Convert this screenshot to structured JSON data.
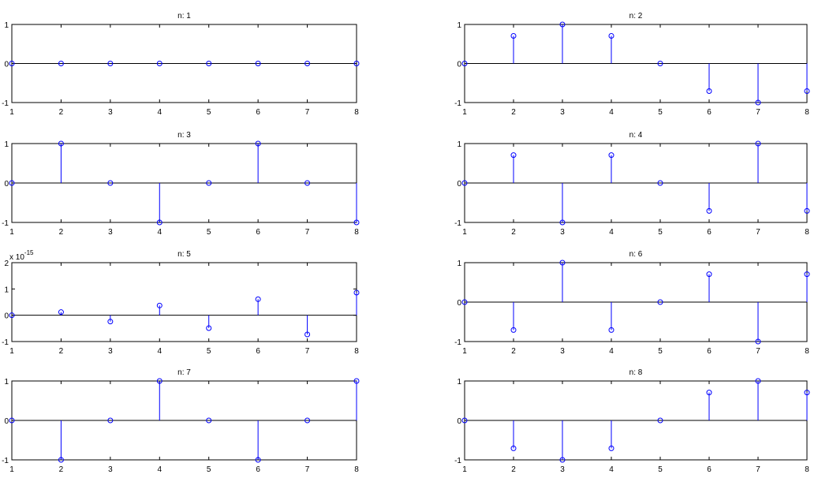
{
  "chart_data": [
    {
      "type": "stem",
      "title": "n: 1",
      "x": [
        1,
        2,
        3,
        4,
        5,
        6,
        7,
        8
      ],
      "values": [
        0,
        0,
        0,
        0,
        0,
        0,
        0,
        0
      ],
      "xlim": [
        1,
        8
      ],
      "ylim": [
        -1,
        1
      ],
      "xticks": [
        "1",
        "2",
        "3",
        "4",
        "5",
        "6",
        "7",
        "8"
      ],
      "yticks": [
        {
          "v": -1,
          "label": "-1"
        },
        {
          "v": 0,
          "label": "0"
        },
        {
          "v": 1,
          "label": "1"
        }
      ],
      "grid": false
    },
    {
      "type": "stem",
      "title": "n: 2",
      "x": [
        1,
        2,
        3,
        4,
        5,
        6,
        7,
        8
      ],
      "values": [
        0,
        0.7071,
        1,
        0.7071,
        0,
        -0.7071,
        -1,
        -0.7071
      ],
      "xlim": [
        1,
        8
      ],
      "ylim": [
        -1,
        1
      ],
      "xticks": [
        "1",
        "2",
        "3",
        "4",
        "5",
        "6",
        "7",
        "8"
      ],
      "yticks": [
        {
          "v": -1,
          "label": "-1"
        },
        {
          "v": 0,
          "label": "0"
        },
        {
          "v": 1,
          "label": "1"
        }
      ],
      "grid": false
    },
    {
      "type": "stem",
      "title": "n: 3",
      "x": [
        1,
        2,
        3,
        4,
        5,
        6,
        7,
        8
      ],
      "values": [
        0,
        1,
        0,
        -1,
        0,
        1,
        0,
        -1
      ],
      "xlim": [
        1,
        8
      ],
      "ylim": [
        -1,
        1
      ],
      "xticks": [
        "1",
        "2",
        "3",
        "4",
        "5",
        "6",
        "7",
        "8"
      ],
      "yticks": [
        {
          "v": -1,
          "label": "-1"
        },
        {
          "v": 0,
          "label": "0"
        },
        {
          "v": 1,
          "label": "1"
        }
      ],
      "grid": false
    },
    {
      "type": "stem",
      "title": "n: 4",
      "x": [
        1,
        2,
        3,
        4,
        5,
        6,
        7,
        8
      ],
      "values": [
        0,
        0.7071,
        -1,
        0.7071,
        0,
        -0.7071,
        1,
        -0.7071
      ],
      "xlim": [
        1,
        8
      ],
      "ylim": [
        -1,
        1
      ],
      "xticks": [
        "1",
        "2",
        "3",
        "4",
        "5",
        "6",
        "7",
        "8"
      ],
      "yticks": [
        {
          "v": -1,
          "label": "-1"
        },
        {
          "v": 0,
          "label": "0"
        },
        {
          "v": 1,
          "label": "1"
        }
      ],
      "grid": false
    },
    {
      "type": "stem",
      "title": "n: 5",
      "x": [
        1,
        2,
        3,
        4,
        5,
        6,
        7,
        8
      ],
      "values": [
        0,
        0.12,
        -0.24,
        0.37,
        -0.49,
        0.61,
        -0.73,
        0.86
      ],
      "xlim": [
        1,
        8
      ],
      "ylim": [
        -1,
        2
      ],
      "xticks": [
        "1",
        "2",
        "3",
        "4",
        "5",
        "6",
        "7",
        "8"
      ],
      "yticks": [
        {
          "v": -1,
          "label": "-1"
        },
        {
          "v": 0,
          "label": "0"
        },
        {
          "v": 1,
          "label": "1"
        },
        {
          "v": 2,
          "label": "2"
        }
      ],
      "multiplier_base": "x 10",
      "multiplier_exp": "-15",
      "grid": false
    },
    {
      "type": "stem",
      "title": "n: 6",
      "x": [
        1,
        2,
        3,
        4,
        5,
        6,
        7,
        8
      ],
      "values": [
        0,
        -0.7071,
        1,
        -0.7071,
        0,
        0.7071,
        -1,
        0.7071
      ],
      "xlim": [
        1,
        8
      ],
      "ylim": [
        -1,
        1
      ],
      "xticks": [
        "1",
        "2",
        "3",
        "4",
        "5",
        "6",
        "7",
        "8"
      ],
      "yticks": [
        {
          "v": -1,
          "label": "-1"
        },
        {
          "v": 0,
          "label": "0"
        },
        {
          "v": 1,
          "label": "1"
        }
      ],
      "grid": false
    },
    {
      "type": "stem",
      "title": "n: 7",
      "x": [
        1,
        2,
        3,
        4,
        5,
        6,
        7,
        8
      ],
      "values": [
        0,
        -1,
        0,
        1,
        0,
        -1,
        0,
        1
      ],
      "xlim": [
        1,
        8
      ],
      "ylim": [
        -1,
        1
      ],
      "xticks": [
        "1",
        "2",
        "3",
        "4",
        "5",
        "6",
        "7",
        "8"
      ],
      "yticks": [
        {
          "v": -1,
          "label": "-1"
        },
        {
          "v": 0,
          "label": "0"
        },
        {
          "v": 1,
          "label": "1"
        }
      ],
      "grid": false
    },
    {
      "type": "stem",
      "title": "n: 8",
      "x": [
        1,
        2,
        3,
        4,
        5,
        6,
        7,
        8
      ],
      "values": [
        0,
        -0.7071,
        -1,
        -0.7071,
        0,
        0.7071,
        1,
        0.7071
      ],
      "xlim": [
        1,
        8
      ],
      "ylim": [
        -1,
        1
      ],
      "xticks": [
        "1",
        "2",
        "3",
        "4",
        "5",
        "6",
        "7",
        "8"
      ],
      "yticks": [
        {
          "v": -1,
          "label": "-1"
        },
        {
          "v": 0,
          "label": "0"
        },
        {
          "v": 1,
          "label": "1"
        }
      ],
      "grid": false
    }
  ],
  "colors": {
    "stem": "#0000ff",
    "axes": "#000000",
    "background": "#ffffff"
  }
}
